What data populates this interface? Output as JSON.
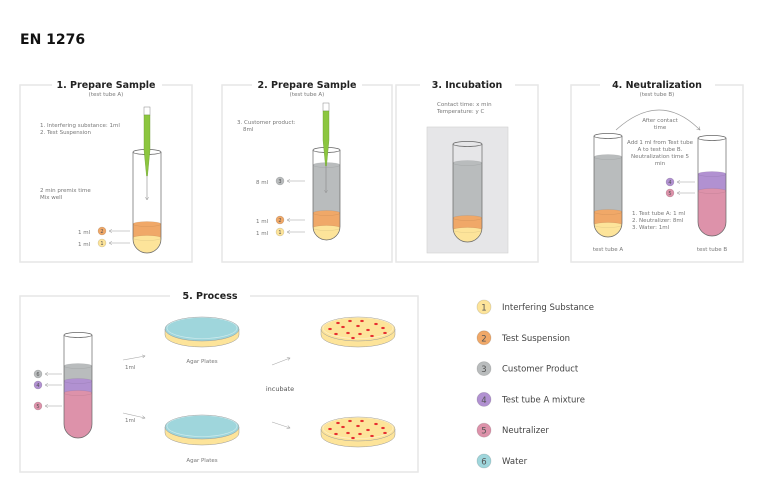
{
  "title": "EN 1276",
  "colors": {
    "interfering": "#fde49a",
    "suspension": "#f0a868",
    "product": "#b9bcbd",
    "mixture": "#b191d1",
    "neutralizer": "#dd92aa",
    "water": "#9fd6dc",
    "pipette": "#8cc63f",
    "colony": "#e63030"
  },
  "panel1": {
    "title": "1. Prepare Sample",
    "subtitle": "(test tube A)",
    "step1": "1. Interfering substance: 1ml",
    "step2": "2. Test Suspension",
    "note1": "2 min premix time",
    "note2": "Mix well",
    "label_2": "1 ml",
    "label_1": "1 ml"
  },
  "panel2": {
    "title": "2. Prepare Sample",
    "subtitle": "(test tube A)",
    "step1": "3. Customer product:",
    "step1b": "8ml",
    "label_3": "8 ml",
    "label_2": "1 ml",
    "label_1": "1 ml"
  },
  "panel3": {
    "title": "3. Incubation",
    "line1": "Contact time: x min",
    "line2": "Temperature: y C"
  },
  "panel4": {
    "title": "4. Neutralization",
    "subtitle": "(test tube B)",
    "after1": "After contact",
    "after2": "time",
    "add1": "Add 1 ml from Test tube",
    "add2": "A to test tube B.",
    "add3": "Neutralization time 5",
    "add4": "min",
    "list1": "1. Test tube A: 1 ml",
    "list2": "2. Neutralizer: 8ml",
    "list3": "3. Water: 1ml",
    "tubeA": "test tube A",
    "tubeB": "test tube B"
  },
  "panel5": {
    "title": "5. Process",
    "agar1": "Agar Plates",
    "agar2": "Agar Plates",
    "ml1": "1ml",
    "ml2": "1ml",
    "incubate": "incubate"
  },
  "legend": [
    {
      "num": "1",
      "label": "Interfering Substance",
      "color": "#fde49a"
    },
    {
      "num": "2",
      "label": "Test Suspension",
      "color": "#f0a868"
    },
    {
      "num": "3",
      "label": "Customer Product",
      "color": "#b9bcbd"
    },
    {
      "num": "4",
      "label": "Test tube A mixture",
      "color": "#b191d1"
    },
    {
      "num": "5",
      "label": "Neutralizer",
      "color": "#dd92aa"
    },
    {
      "num": "6",
      "label": "Water",
      "color": "#9fd6dc"
    }
  ]
}
